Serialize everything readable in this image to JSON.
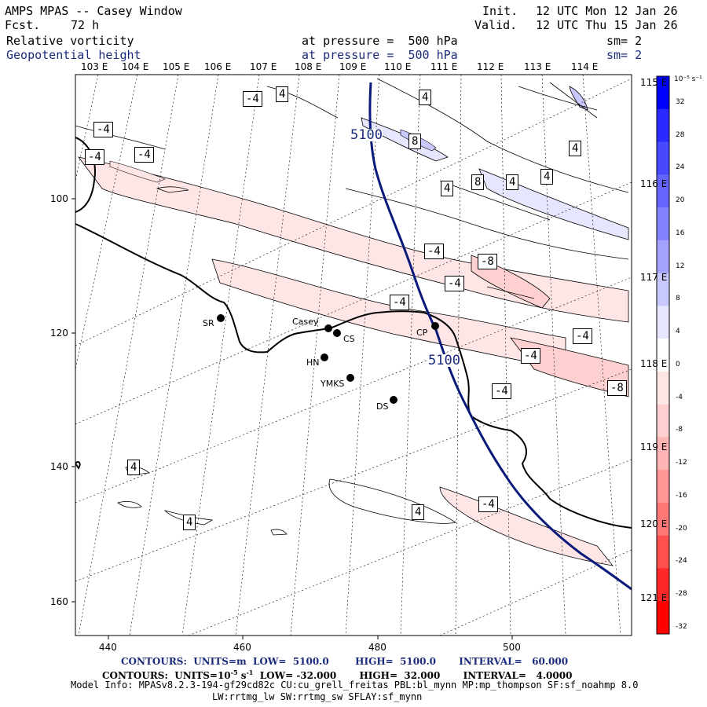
{
  "header": {
    "title": "AMPS MPAS -- Casey Window",
    "fcst_label": "Fcst.",
    "fcst_value": "72 h",
    "init_label": "Init.",
    "init_value": "12 UTC Mon 12 Jan 26",
    "valid_label": "Valid.",
    "valid_value": "12 UTC Thu 15 Jan 26",
    "field1_name": "Relative vorticity",
    "field1_level": "at pressure =  500 hPa",
    "field1_sm": "sm= 2",
    "field2_name": "Geopotential height",
    "field2_level": "at pressure =  500 hPa",
    "field2_sm": "sm= 2"
  },
  "axes": {
    "top_lon_labels": [
      "103 E",
      "104 E",
      "105 E",
      "106 E",
      "107 E",
      "108 E",
      "109 E",
      "110 E",
      "111 E",
      "112 E",
      "113 E",
      "114 E"
    ],
    "right_lon_labels": [
      "115 E",
      "116 E",
      "117 E",
      "118 E",
      "119 E",
      "120 E",
      "121 E"
    ],
    "x_ticks": [
      "440",
      "460",
      "480",
      "500"
    ],
    "y_ticks": [
      "100",
      "120",
      "140",
      "160"
    ]
  },
  "colorbar": {
    "unit": "10⁻⁵ s⁻¹",
    "labels": [
      "32",
      "28",
      "24",
      "20",
      "16",
      "12",
      "8",
      "4",
      "0",
      "-4",
      "-8",
      "-12",
      "-16",
      "-20",
      "-24",
      "-28",
      "-32"
    ],
    "colors": [
      "#0000ff",
      "#2a2aff",
      "#4848ff",
      "#6464ff",
      "#8282ff",
      "#a4a4ff",
      "#c8c8ff",
      "#e6e6ff",
      "#ffffff",
      "#ffe6e6",
      "#ffd0d0",
      "#ffb4b4",
      "#ff9696",
      "#ff7878",
      "#ff5050",
      "#ff2828",
      "#ff0000"
    ]
  },
  "stations": [
    {
      "code": "SR"
    },
    {
      "code": "Casey"
    },
    {
      "code": "CS"
    },
    {
      "code": "HN"
    },
    {
      "code": "YMKS"
    },
    {
      "code": "DS"
    },
    {
      "code": "CP"
    }
  ],
  "contour_labels": {
    "height_a": "5100",
    "height_b": "5100",
    "vort": [
      "-4",
      "4",
      "4",
      "-4",
      "-4",
      "-4",
      "8",
      "4",
      "4",
      "8",
      "4",
      "4",
      "-4",
      "-8",
      "-4",
      "-4",
      "-4",
      "-4",
      "-8",
      "-4",
      "4",
      "4",
      "4",
      "-4"
    ]
  },
  "footer": {
    "line1": "CONTOURS:  UNITS=m  LOW=  5100.0        HIGH=  5100.0       INTERVAL=   60.000",
    "line2_a": "CONTOURS:  UNITS=10",
    "line2_sup": "-5",
    "line2_b": " s",
    "line2_sup2": "-1",
    "line2_c": "  LOW= -32.000       HIGH=  32.000       INTERVAL=   4.0000",
    "line3": "Model Info: MPASv8.2.3-194-gf29cd82c CU:cu_grell_freitas PBL:bl_mynn MP:mp_thompson SF:sf_noahmp 8.0",
    "line4": "LW:rrtmg_lw SW:rrtmg_sw SFLAY:sf_mynn"
  }
}
